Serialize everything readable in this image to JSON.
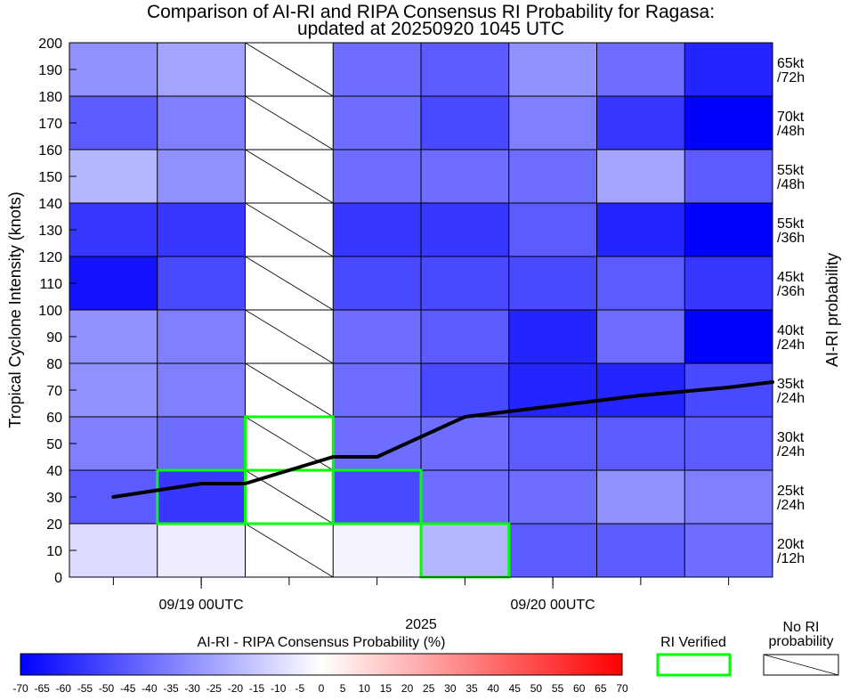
{
  "title": {
    "line1": "Comparison of AI-RI and RIPA Consensus RI Probability for Ragasa:",
    "line2": "updated at 20250920 1045 UTC"
  },
  "y_axis_label": "Tropical Cyclone Intensity (knots)",
  "right_axis_label": "AI-RI probability",
  "x_year_label": "2025",
  "colorbar_label": "AI-RI - RIPA Consensus Probability (%)",
  "legend": {
    "ri_verified": "RI Verified",
    "no_ri_line1": "No RI",
    "no_ri_line2": "probability"
  },
  "chart_data": {
    "type": "heatmap",
    "x_tick_labels": [
      {
        "label": "09/19 00UTC",
        "hour": 24
      },
      {
        "label": "09/20 00UTC",
        "hour": 48
      }
    ],
    "columns_hour_start": [
      15,
      21,
      27,
      33,
      39,
      45,
      51,
      57
    ],
    "column_width_hours": 6,
    "x_range_hours": [
      15,
      63
    ],
    "y_range": [
      0,
      200
    ],
    "y_ticks": [
      0,
      10,
      20,
      30,
      40,
      50,
      60,
      70,
      80,
      90,
      100,
      110,
      120,
      130,
      140,
      150,
      160,
      170,
      180,
      190,
      200
    ],
    "rows": [
      {
        "y0": 0,
        "y1": 20,
        "label_line1": "20kt",
        "label_line2": "/12h"
      },
      {
        "y0": 20,
        "y1": 40,
        "label_line1": "25kt",
        "label_line2": "/24h"
      },
      {
        "y0": 40,
        "y1": 60,
        "label_line1": "30kt",
        "label_line2": "/24h"
      },
      {
        "y0": 60,
        "y1": 80,
        "label_line1": "35kt",
        "label_line2": "/24h"
      },
      {
        "y0": 80,
        "y1": 100,
        "label_line1": "40kt",
        "label_line2": "/24h"
      },
      {
        "y0": 100,
        "y1": 120,
        "label_line1": "45kt",
        "label_line2": "/36h"
      },
      {
        "y0": 120,
        "y1": 140,
        "label_line1": "55kt",
        "label_line2": "/36h"
      },
      {
        "y0": 140,
        "y1": 160,
        "label_line1": "55kt",
        "label_line2": "/48h"
      },
      {
        "y0": 160,
        "y1": 180,
        "label_line1": "70kt",
        "label_line2": "/48h"
      },
      {
        "y0": 180,
        "y1": 200,
        "label_line1": "65kt",
        "label_line2": "/72h"
      }
    ],
    "values": [
      [
        -10,
        -5,
        null,
        -3,
        -20,
        -45,
        -45,
        -40
      ],
      [
        -45,
        -55,
        null,
        -50,
        -40,
        -40,
        -30,
        -35
      ],
      [
        -35,
        -40,
        null,
        -40,
        -40,
        -45,
        -45,
        -45
      ],
      [
        -30,
        -35,
        null,
        -40,
        -50,
        -60,
        -60,
        -50
      ],
      [
        -30,
        -35,
        null,
        -40,
        -45,
        -60,
        -40,
        -70
      ],
      [
        -65,
        -50,
        null,
        -50,
        -50,
        -50,
        -45,
        -55
      ],
      [
        -55,
        -55,
        null,
        -55,
        -55,
        -45,
        -60,
        -75
      ],
      [
        -20,
        -30,
        null,
        -40,
        -40,
        -40,
        -25,
        -45
      ],
      [
        -45,
        -35,
        null,
        -40,
        -50,
        -35,
        -55,
        -70
      ],
      [
        -30,
        -25,
        null,
        -40,
        -45,
        -30,
        -40,
        -60
      ]
    ],
    "no_ri_probability_columns": [
      2
    ],
    "ri_verified_boxes": [
      {
        "col": 1,
        "y0": 20,
        "y1": 40
      },
      {
        "col": 2,
        "y0": 20,
        "y1": 40
      },
      {
        "col": 2,
        "y0": 40,
        "y1": 60
      },
      {
        "col": 3,
        "y0": 20,
        "y1": 40
      },
      {
        "col": 4,
        "y0": 0,
        "y1": 20
      }
    ],
    "intensity_line": {
      "hours": [
        18,
        24,
        27,
        33,
        36,
        42,
        48,
        54,
        60,
        63
      ],
      "values": [
        30,
        35,
        35,
        45,
        45,
        60,
        64,
        68,
        71,
        73
      ]
    },
    "colorbar": {
      "min": -70,
      "max": 70,
      "step": 5,
      "negative_color": "#0000ff",
      "positive_color": "#ff0000",
      "zero_color": "#ffffff",
      "ticks": [
        "-70",
        "-65",
        "-60",
        "-55",
        "-50",
        "-45",
        "-40",
        "-35",
        "-30",
        "-25",
        "-20",
        "-15",
        "-10",
        "-5",
        "0",
        "5",
        "10",
        "15",
        "20",
        "25",
        "30",
        "35",
        "40",
        "45",
        "50",
        "55",
        "60",
        "65",
        "70"
      ]
    },
    "verified_color": "#00ff00",
    "line_color": "#000000"
  }
}
